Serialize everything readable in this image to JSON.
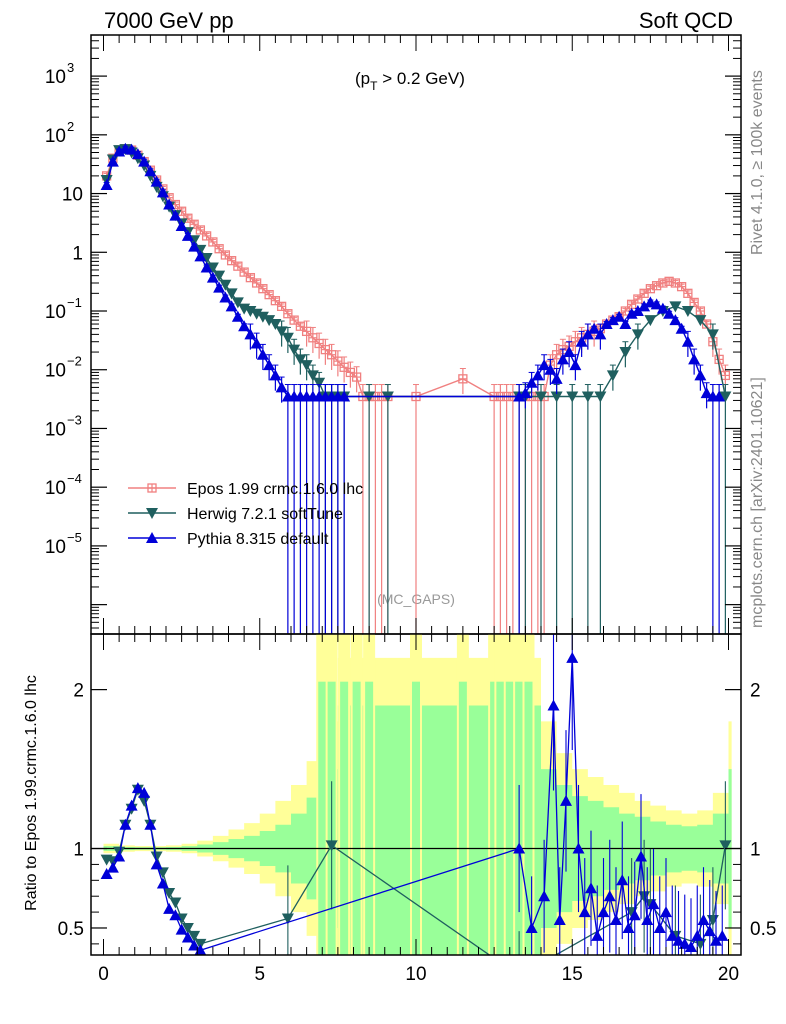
{
  "header": {
    "left": "7000 GeV pp",
    "right": "Soft QCD"
  },
  "side_labels": {
    "rivet": "Rivet 4.1.0, ≥ 100k events",
    "mcplots": "mcplots.cern.ch [arXiv:2401.10621]"
  },
  "colors": {
    "epos": "#f08080",
    "herwig": "#1f5f5f",
    "pythia": "#0000d8",
    "band_inner": "#99ff99",
    "band_outer": "#ffff99"
  },
  "chart_data": [
    {
      "type": "line",
      "title": "(p_T > 0.2 GeV)",
      "title_main": "(p",
      "title_sub": "T",
      "title_rest": " > 0.2 GeV)",
      "watermark": "(MC_GAPS)",
      "xlim": [
        -0.4,
        20.4
      ],
      "ylim_log10": [
        -6.5,
        3.7
      ],
      "x_ticks": [
        0,
        5,
        10,
        15,
        20
      ],
      "y_tick_labels": [
        {
          "exp": 3,
          "base": "10",
          "sup": "3"
        },
        {
          "exp": 2,
          "base": "10",
          "sup": "2"
        },
        {
          "exp": 1,
          "base": "10",
          "sup": ""
        },
        {
          "exp": 0,
          "base": "1",
          "sup": ""
        },
        {
          "exp": -1,
          "base": "10",
          "sup": "−1"
        },
        {
          "exp": -2,
          "base": "10",
          "sup": "−2"
        },
        {
          "exp": -3,
          "base": "10",
          "sup": "−3"
        },
        {
          "exp": -4,
          "base": "10",
          "sup": "−4"
        },
        {
          "exp": -5,
          "base": "10",
          "sup": "−5"
        }
      ],
      "legend_position": "lower-left",
      "series": [
        {
          "name": "Epos 1.99 crmc.1.6.0 lhc",
          "marker": "square-cross",
          "x": [
            0.1,
            0.3,
            0.5,
            0.7,
            0.9,
            1.1,
            1.3,
            1.5,
            1.7,
            1.9,
            2.1,
            2.3,
            2.5,
            2.7,
            2.9,
            3.1,
            3.3,
            3.5,
            3.7,
            3.9,
            4.1,
            4.3,
            4.5,
            4.7,
            4.9,
            5.1,
            5.3,
            5.5,
            5.7,
            5.9,
            6.1,
            6.3,
            6.5,
            6.7,
            6.9,
            7.1,
            7.3,
            7.5,
            7.7,
            7.9,
            8.1,
            8.3,
            8.5,
            8.7,
            8.9,
            9.1,
            10.0,
            11.5,
            12.5,
            12.7,
            12.9,
            13.1,
            13.3,
            13.5,
            13.7,
            13.9,
            14.1,
            14.3,
            14.5,
            14.7,
            14.9,
            15.1,
            15.3,
            15.5,
            15.7,
            15.9,
            16.1,
            16.3,
            16.5,
            16.7,
            16.9,
            17.1,
            17.3,
            17.5,
            17.7,
            17.9,
            18.1,
            18.3,
            18.5,
            18.7,
            18.9,
            19.1,
            19.3,
            19.5,
            19.7,
            19.9
          ],
          "y": [
            20,
            40,
            55,
            58,
            55,
            45,
            35,
            25,
            17,
            12,
            8.5,
            6.5,
            5,
            3.8,
            3.0,
            2.4,
            1.9,
            1.5,
            1.15,
            0.9,
            0.72,
            0.58,
            0.46,
            0.37,
            0.3,
            0.24,
            0.19,
            0.15,
            0.12,
            0.09,
            0.07,
            0.055,
            0.045,
            0.035,
            0.028,
            0.022,
            0.018,
            0.014,
            0.011,
            0.009,
            0.0075,
            0.0035,
            0.0035,
            0.0035,
            0.0035,
            0.0035,
            0.0035,
            0.007,
            0.0035,
            0.0035,
            0.0035,
            0.0035,
            0.0035,
            0.0035,
            0.0035,
            0.0035,
            0.0035,
            0.012,
            0.018,
            0.022,
            0.025,
            0.03,
            0.035,
            0.04,
            0.045,
            0.05,
            0.06,
            0.07,
            0.08,
            0.1,
            0.13,
            0.16,
            0.2,
            0.24,
            0.27,
            0.3,
            0.32,
            0.3,
            0.26,
            0.2,
            0.14,
            0.1,
            0.06,
            0.03,
            0.015,
            0.008
          ]
        },
        {
          "name": "Herwig 7.2.1 softTune",
          "marker": "triangle-down",
          "x": [
            0.1,
            0.3,
            0.5,
            0.7,
            0.9,
            1.1,
            1.3,
            1.5,
            1.7,
            1.9,
            2.1,
            2.3,
            2.5,
            2.7,
            2.9,
            3.1,
            3.3,
            3.5,
            3.7,
            3.9,
            4.1,
            4.3,
            4.5,
            4.7,
            4.9,
            5.1,
            5.3,
            5.5,
            5.7,
            5.9,
            6.1,
            6.3,
            6.5,
            6.7,
            6.9,
            7.1,
            7.3,
            7.5,
            7.7,
            8.5,
            9.1,
            13.3,
            13.5,
            14.0,
            14.5,
            15.0,
            15.5,
            15.9,
            16.3,
            16.7,
            17.1,
            17.5,
            17.9,
            18.3,
            18.7,
            19.1,
            19.5,
            19.9
          ],
          "y": [
            17,
            38,
            55,
            57,
            50,
            40,
            30,
            20,
            13,
            9,
            6,
            4.3,
            3.1,
            2.2,
            1.6,
            1.1,
            0.8,
            0.55,
            0.4,
            0.28,
            0.2,
            0.14,
            0.11,
            0.1,
            0.09,
            0.08,
            0.07,
            0.06,
            0.045,
            0.035,
            0.022,
            0.015,
            0.012,
            0.008,
            0.006,
            0.0035,
            0.0035,
            0.0035,
            0.0035,
            0.0035,
            0.0035,
            0.0035,
            0.0035,
            0.0035,
            0.0035,
            0.0035,
            0.0035,
            0.0035,
            0.008,
            0.02,
            0.04,
            0.07,
            0.1,
            0.12,
            0.1,
            0.07,
            0.04,
            0.0035
          ]
        },
        {
          "name": "Pythia 8.315 default",
          "marker": "triangle-up",
          "x": [
            0.1,
            0.3,
            0.5,
            0.7,
            0.9,
            1.1,
            1.3,
            1.5,
            1.7,
            1.9,
            2.1,
            2.3,
            2.5,
            2.7,
            2.9,
            3.1,
            3.3,
            3.5,
            3.7,
            3.9,
            4.1,
            4.3,
            4.5,
            4.7,
            4.9,
            5.1,
            5.3,
            5.5,
            5.7,
            5.9,
            6.1,
            6.3,
            6.5,
            6.7,
            6.9,
            7.1,
            7.3,
            7.5,
            7.7,
            13.3,
            13.5,
            13.7,
            13.9,
            14.1,
            14.3,
            14.5,
            14.7,
            14.9,
            15.1,
            15.3,
            15.5,
            15.7,
            15.9,
            16.1,
            16.3,
            16.5,
            16.7,
            16.9,
            17.1,
            17.3,
            17.5,
            17.7,
            17.9,
            18.1,
            18.3,
            18.5,
            18.7,
            18.9,
            19.1,
            19.3,
            19.5,
            19.7
          ],
          "y": [
            14,
            35,
            52,
            58,
            56,
            47,
            35,
            24,
            16,
            10.5,
            6.5,
            4.2,
            2.8,
            1.9,
            1.25,
            0.85,
            0.55,
            0.37,
            0.25,
            0.17,
            0.12,
            0.08,
            0.055,
            0.04,
            0.028,
            0.018,
            0.012,
            0.008,
            0.005,
            0.0035,
            0.0035,
            0.0035,
            0.0035,
            0.0035,
            0.0035,
            0.0035,
            0.0035,
            0.0035,
            0.0035,
            0.0035,
            0.004,
            0.006,
            0.008,
            0.012,
            0.01,
            0.007,
            0.015,
            0.02,
            0.012,
            0.03,
            0.04,
            0.05,
            0.04,
            0.06,
            0.07,
            0.08,
            0.06,
            0.09,
            0.1,
            0.12,
            0.14,
            0.13,
            0.11,
            0.09,
            0.07,
            0.05,
            0.03,
            0.015,
            0.008,
            0.004,
            0.0035,
            0.0035
          ]
        }
      ]
    },
    {
      "type": "line",
      "ylabel": "Ratio to Epos 1.99.crmc.1.6.0 lhc",
      "xlim": [
        -0.4,
        20.4
      ],
      "ylim": [
        0.33,
        2.35
      ],
      "x_ticks": [
        0,
        5,
        10,
        15,
        20
      ],
      "y_ticks": [
        0.5,
        1,
        2
      ],
      "reference": 1,
      "band_x": [
        0.0,
        0.5,
        1.0,
        1.5,
        2.0,
        2.5,
        3.0,
        3.5,
        4.0,
        4.5,
        5.0,
        5.5,
        6.0,
        6.5,
        7.0,
        7.5,
        13.5,
        14.0,
        14.5,
        15.0,
        15.5,
        16.0,
        16.5,
        17.0,
        17.5,
        18.0,
        18.5,
        19.0,
        19.5,
        20.0
      ],
      "band_inner": [
        0.015,
        0.01,
        0.008,
        0.008,
        0.01,
        0.015,
        0.025,
        0.04,
        0.06,
        0.08,
        0.11,
        0.15,
        0.22,
        0.32,
        0.5,
        0.9,
        0.9,
        0.5,
        0.4,
        0.33,
        0.3,
        0.26,
        0.22,
        0.2,
        0.17,
        0.15,
        0.14,
        0.15,
        0.22,
        0.5
      ],
      "band_outer": [
        0.03,
        0.02,
        0.016,
        0.016,
        0.02,
        0.03,
        0.05,
        0.08,
        0.12,
        0.16,
        0.22,
        0.3,
        0.4,
        0.55,
        0.8,
        1.2,
        1.2,
        0.8,
        0.6,
        0.5,
        0.45,
        0.4,
        0.35,
        0.3,
        0.27,
        0.24,
        0.22,
        0.24,
        0.35,
        0.8
      ],
      "band_spikes_x": [
        7.0,
        7.3,
        7.7,
        8.1,
        8.5,
        10.0,
        11.5,
        12.5,
        12.7,
        13.0,
        13.3,
        13.6
      ],
      "series": [
        {
          "name": "Herwig 7.2.1 softTune",
          "x": [
            0.1,
            0.3,
            0.5,
            0.7,
            0.9,
            1.1,
            1.3,
            1.5,
            1.7,
            1.9,
            2.1,
            2.3,
            2.5,
            2.7,
            2.9,
            3.1,
            5.9,
            7.3,
            13.3,
            16.9,
            17.3,
            17.5,
            18.3,
            19.1,
            19.5,
            19.9
          ],
          "y": [
            0.93,
            0.92,
            0.98,
            1.15,
            1.25,
            1.37,
            1.3,
            1.15,
            0.95,
            0.85,
            0.72,
            0.66,
            0.56,
            0.5,
            0.45,
            0.4,
            0.56,
            1.02,
            0.2,
            0.6,
            0.7,
            0.65,
            0.45,
            0.4,
            0.55,
            1.02
          ]
        },
        {
          "name": "Pythia 8.315 default",
          "x": [
            0.1,
            0.3,
            0.5,
            0.7,
            0.9,
            1.1,
            1.3,
            1.5,
            1.7,
            1.9,
            2.1,
            2.3,
            2.5,
            2.7,
            2.9,
            3.1,
            13.3,
            13.7,
            14.1,
            14.4,
            14.6,
            14.8,
            15.0,
            15.2,
            15.4,
            15.6,
            15.8,
            16.0,
            16.2,
            16.4,
            16.6,
            16.8,
            17.0,
            17.2,
            17.4,
            17.6,
            17.8,
            18.0,
            18.2,
            18.4,
            18.6,
            18.8,
            19.0,
            19.2,
            19.4,
            19.6,
            19.8
          ],
          "y": [
            0.84,
            0.88,
            0.95,
            1.15,
            1.27,
            1.38,
            1.35,
            1.15,
            0.9,
            0.78,
            0.62,
            0.58,
            0.49,
            0.44,
            0.39,
            0.36,
            1.0,
            0.5,
            0.7,
            1.9,
            0.55,
            1.3,
            2.2,
            1.0,
            0.6,
            0.75,
            0.45,
            0.6,
            0.7,
            0.55,
            0.8,
            0.5,
            0.58,
            0.95,
            0.55,
            0.65,
            0.5,
            0.6,
            0.45,
            0.42,
            0.4,
            0.38,
            0.45,
            0.55,
            0.48,
            0.42,
            0.45
          ]
        }
      ]
    }
  ]
}
